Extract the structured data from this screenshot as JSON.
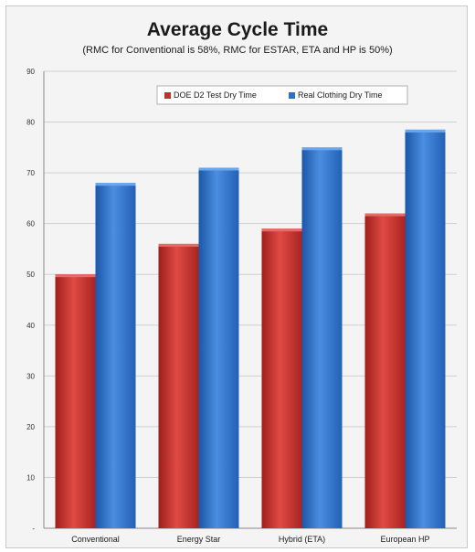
{
  "chart_data": {
    "type": "bar",
    "title": "Average Cycle Time",
    "subtitle": "(RMC for Conventional is 58%, RMC for ESTAR, ETA and HP is 50%)",
    "categories": [
      "Conventional",
      "Energy Star",
      "Hybrid (ETA)",
      "European HP"
    ],
    "series": [
      {
        "name": "DOE D2 Test Dry Time",
        "values": [
          50,
          56,
          59,
          62
        ],
        "color": "#c0302c"
      },
      {
        "name": "Real Clothing Dry Time",
        "values": [
          68,
          71,
          75,
          78.5
        ],
        "color": "#2f6fc4"
      }
    ],
    "ylim": [
      0,
      90
    ],
    "yticks": [
      0,
      10,
      20,
      30,
      40,
      50,
      60,
      70,
      80,
      90
    ],
    "ytick_labels": [
      "-",
      "10",
      "20",
      "30",
      "40",
      "50",
      "60",
      "70",
      "80",
      "90"
    ],
    "grid": true,
    "legend_position": "top-center",
    "xlabel": "",
    "ylabel": ""
  }
}
